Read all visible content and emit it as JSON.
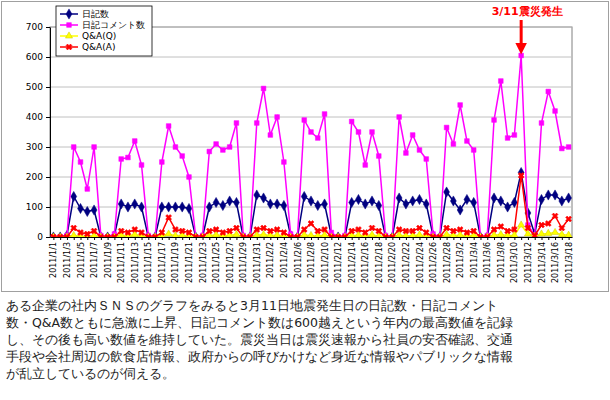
{
  "chart_data": {
    "type": "line",
    "categories": [
      "2011/1/1",
      null,
      "2011/1/3",
      null,
      "2011/1/5",
      null,
      "2011/1/7",
      null,
      "2011/1/9",
      null,
      "2011/1/11",
      null,
      "2011/1/13",
      null,
      "2011/1/15",
      null,
      "2011/1/17",
      null,
      "2011/1/19",
      null,
      "2011/1/21",
      null,
      "2011/1/23",
      null,
      "2011/1/25",
      null,
      "2011/1/27",
      null,
      "2011/1/29",
      null,
      "2011/1/31",
      null,
      "2011/2/2",
      null,
      "2011/2/4",
      null,
      "2011/2/6",
      null,
      "2011/2/8",
      null,
      "2011/2/10",
      null,
      "2011/2/12",
      null,
      "2011/2/14",
      null,
      "2011/2/16",
      null,
      "2011/2/18",
      null,
      "2011/2/20",
      null,
      "2011/2/22",
      null,
      "2011/2/24",
      null,
      "2011/2/26",
      null,
      "2011/2/28",
      null,
      "2011/3/2",
      null,
      "2011/3/4",
      null,
      "2011/3/6",
      null,
      "2011/3/8",
      null,
      "2011/3/10",
      null,
      "2011/3/12",
      null,
      "2011/3/14",
      null,
      "2011/3/16",
      null,
      "2011/3/18"
    ],
    "series": [
      {
        "name": "日記数",
        "color": "#000080",
        "marker": "diamond",
        "values": [
          0,
          0,
          5,
          135,
          95,
          85,
          90,
          0,
          0,
          5,
          110,
          100,
          110,
          100,
          0,
          0,
          100,
          100,
          100,
          100,
          95,
          0,
          0,
          100,
          115,
          105,
          120,
          115,
          0,
          0,
          140,
          130,
          110,
          110,
          105,
          5,
          0,
          135,
          120,
          105,
          110,
          5,
          0,
          0,
          115,
          125,
          110,
          120,
          105,
          0,
          0,
          130,
          110,
          120,
          125,
          110,
          5,
          0,
          150,
          120,
          90,
          125,
          115,
          0,
          0,
          130,
          120,
          100,
          115,
          215,
          80,
          10,
          125,
          140,
          140,
          120,
          130
        ]
      },
      {
        "name": "日記コメント数",
        "color": "#ff00ff",
        "marker": "square",
        "values": [
          0,
          0,
          5,
          300,
          250,
          160,
          300,
          5,
          0,
          10,
          260,
          265,
          320,
          240,
          5,
          0,
          250,
          370,
          300,
          270,
          200,
          0,
          5,
          285,
          310,
          290,
          300,
          380,
          5,
          0,
          380,
          495,
          340,
          400,
          250,
          10,
          0,
          390,
          350,
          330,
          410,
          15,
          0,
          5,
          385,
          350,
          240,
          350,
          270,
          5,
          0,
          400,
          280,
          340,
          290,
          260,
          10,
          0,
          365,
          310,
          440,
          320,
          290,
          0,
          5,
          390,
          520,
          330,
          340,
          605,
          40,
          5,
          380,
          485,
          420,
          295,
          300
        ]
      },
      {
        "name": "Q&A(Q)",
        "color": "#ffff00",
        "marker": "triangle",
        "values": [
          0,
          0,
          0,
          5,
          3,
          2,
          4,
          0,
          0,
          0,
          6,
          4,
          8,
          3,
          0,
          0,
          5,
          10,
          4,
          6,
          3,
          0,
          0,
          5,
          7,
          4,
          6,
          8,
          0,
          0,
          6,
          8,
          5,
          6,
          3,
          0,
          0,
          7,
          5,
          4,
          6,
          0,
          0,
          0,
          5,
          6,
          4,
          7,
          3,
          0,
          0,
          6,
          4,
          5,
          7,
          3,
          0,
          0,
          8,
          5,
          6,
          4,
          5,
          0,
          0,
          6,
          8,
          5,
          6,
          40,
          10,
          2,
          10,
          12,
          15,
          8,
          6
        ]
      },
      {
        "name": "Q&A(A)",
        "color": "#ff0000",
        "marker": "x",
        "values": [
          0,
          0,
          0,
          30,
          15,
          10,
          20,
          0,
          0,
          0,
          20,
          15,
          25,
          15,
          0,
          0,
          15,
          65,
          25,
          20,
          15,
          0,
          0,
          20,
          25,
          15,
          20,
          30,
          0,
          0,
          25,
          30,
          20,
          25,
          15,
          0,
          0,
          25,
          45,
          20,
          25,
          0,
          0,
          0,
          20,
          25,
          15,
          30,
          20,
          0,
          0,
          25,
          20,
          20,
          30,
          15,
          0,
          0,
          30,
          20,
          25,
          15,
          20,
          0,
          0,
          25,
          35,
          20,
          25,
          205,
          30,
          5,
          40,
          45,
          70,
          30,
          60
        ]
      }
    ],
    "ylim": [
      0,
      700
    ],
    "yticks": [
      0,
      100,
      200,
      300,
      400,
      500,
      600,
      700
    ],
    "grid": true,
    "legend": "upper left",
    "annotations": [
      {
        "text": "3/11震災発生"
      }
    ]
  },
  "caption": [
    "ある企業の社内ＳＮＳのグラフをみると3月11日地震発生日の日記数・日記コメント",
    "数・Q&A数ともに急激に上昇、日記コメント数は600越えという年内の最高数値を記録",
    "し、その後も高い数値を維持していた。震災当日は震災速報から社員の安否確認、交通",
    "手段や会社周辺の飲食店情報、政府からの呼びかけなど身近な情報やパブリックな情報",
    "が乱立しているのが伺える。"
  ]
}
